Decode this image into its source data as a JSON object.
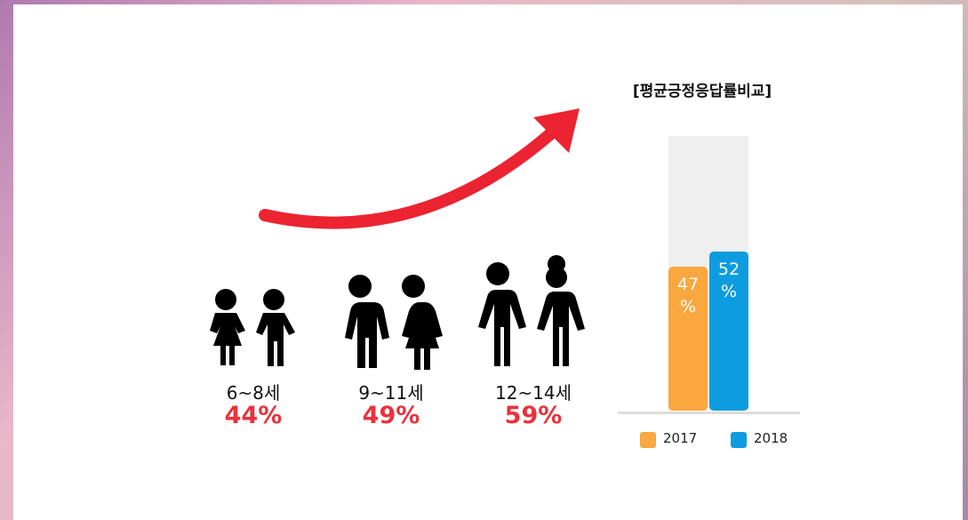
{
  "age_groups": [
    {
      "label": "6~8세",
      "rate": "44%"
    },
    {
      "label": "9~11세",
      "rate": "49%"
    },
    {
      "label": "12~14세",
      "rate": "59%"
    }
  ],
  "chart_data": {
    "type": "bar",
    "title": "[평균긍정응답률비교]",
    "series": [
      {
        "name": "2017",
        "color": "#f9a73e",
        "values": [
          47
        ],
        "value_labels": [
          "47 %"
        ]
      },
      {
        "name": "2018",
        "color": "#0e9ce0",
        "values": [
          52
        ],
        "value_labels": [
          "52 %"
        ]
      }
    ]
  }
}
